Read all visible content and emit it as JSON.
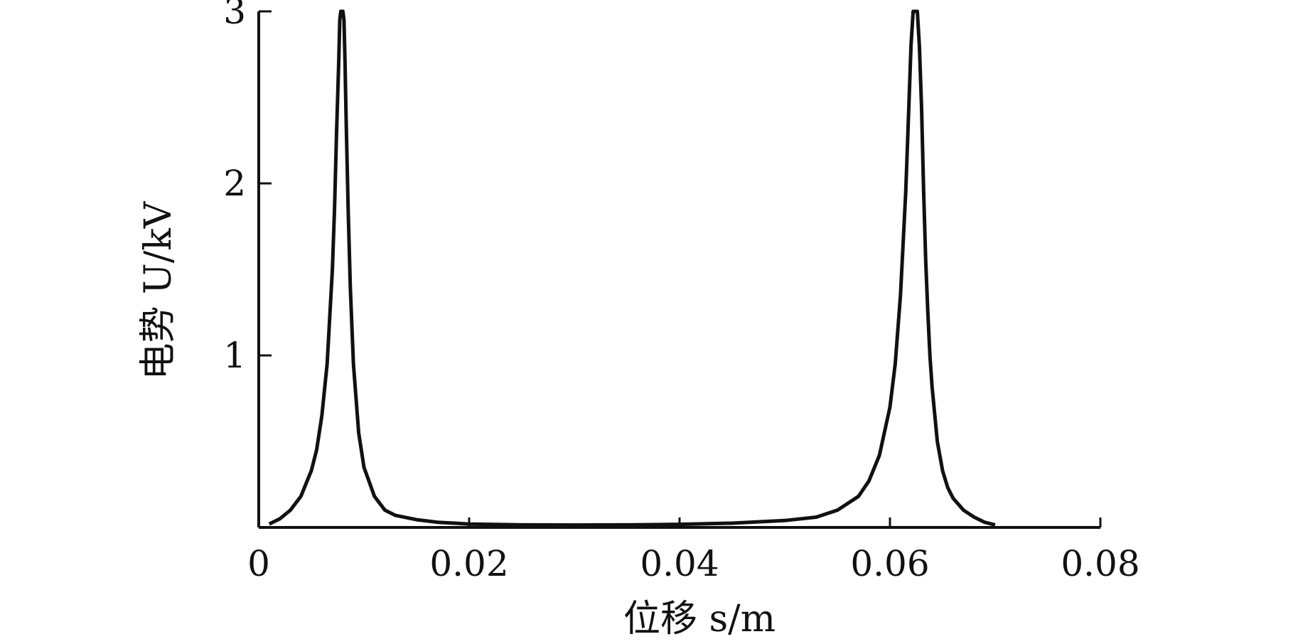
{
  "chart_data": {
    "type": "line",
    "title": "",
    "xlabel": "位移 s/m",
    "ylabel": "电势 U/kV",
    "xlim": [
      0,
      0.08
    ],
    "ylim": [
      0,
      3
    ],
    "x_ticks": [
      "0",
      "0.02",
      "0.04",
      "0.06",
      "0.08"
    ],
    "y_ticks": [
      "1",
      "2",
      "3"
    ],
    "grid": false,
    "legend": "none",
    "series": [
      {
        "color": "#111111",
        "x": [
          0.001,
          0.002,
          0.003,
          0.004,
          0.005,
          0.0055,
          0.006,
          0.0065,
          0.007,
          0.0072,
          0.0074,
          0.0076,
          0.0077,
          0.0078,
          0.0079,
          0.008,
          0.0081,
          0.0082,
          0.0083,
          0.0085,
          0.0087,
          0.009,
          0.0095,
          0.01,
          0.011,
          0.012,
          0.013,
          0.015,
          0.017,
          0.02,
          0.025,
          0.03,
          0.035,
          0.04,
          0.045,
          0.05,
          0.053,
          0.055,
          0.057,
          0.058,
          0.059,
          0.06,
          0.0605,
          0.061,
          0.0615,
          0.0618,
          0.062,
          0.0622,
          0.0624,
          0.0626,
          0.0628,
          0.063,
          0.0632,
          0.0634,
          0.0636,
          0.0638,
          0.064,
          0.0645,
          0.065,
          0.0655,
          0.066,
          0.067,
          0.068,
          0.069,
          0.07
        ],
        "y": [
          0.02,
          0.05,
          0.1,
          0.18,
          0.33,
          0.45,
          0.65,
          0.95,
          1.5,
          1.85,
          2.3,
          2.7,
          2.95,
          3.0,
          3.0,
          3.0,
          2.95,
          2.7,
          2.4,
          1.85,
          1.4,
          0.95,
          0.55,
          0.35,
          0.18,
          0.1,
          0.07,
          0.045,
          0.03,
          0.02,
          0.015,
          0.014,
          0.015,
          0.018,
          0.025,
          0.04,
          0.06,
          0.1,
          0.18,
          0.27,
          0.42,
          0.7,
          0.95,
          1.35,
          1.95,
          2.45,
          2.8,
          3.0,
          3.0,
          3.0,
          2.8,
          2.45,
          1.95,
          1.55,
          1.25,
          1.0,
          0.82,
          0.5,
          0.33,
          0.23,
          0.17,
          0.1,
          0.06,
          0.03,
          0.015
        ]
      }
    ]
  }
}
